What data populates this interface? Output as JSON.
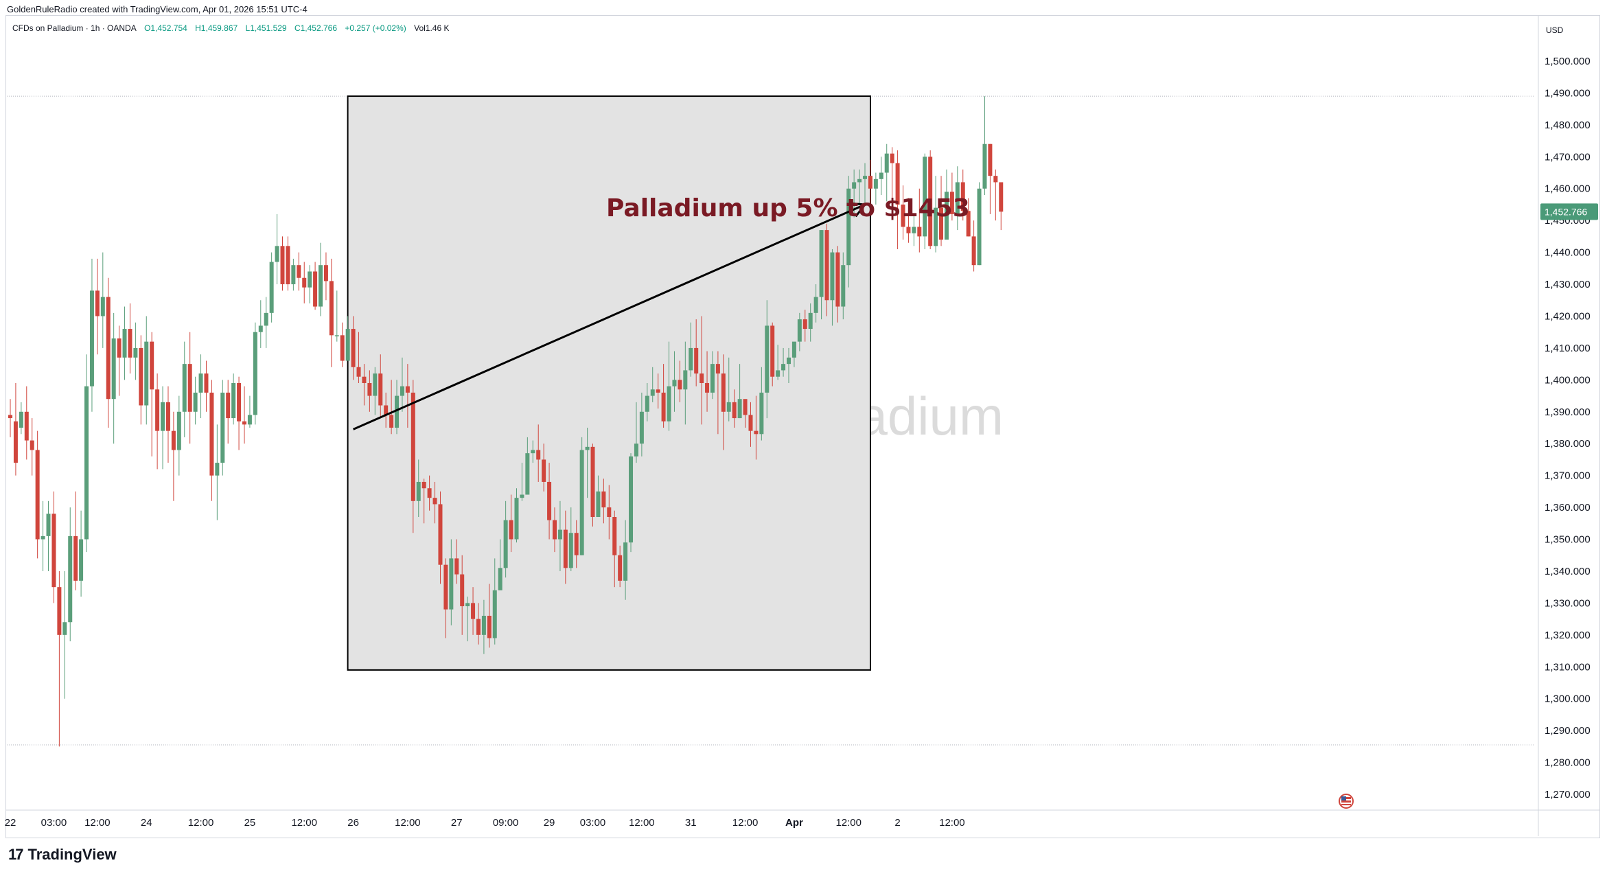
{
  "credit": "GoldenRuleRadio created with TradingView.com, Apr 01, 2026 15:51 UTC-4",
  "legend": {
    "symbol": "CFDs on Palladium · 1h · OANDA",
    "open": "O1,452.754",
    "high": "H1,459.867",
    "low": "L1,451.529",
    "close": "C1,452.766",
    "change": "+0.257 (+0.02%)",
    "volume": "Vol1.46 K"
  },
  "watermark": "CFDs on Palladium",
  "brand": {
    "logo": "17",
    "name": "TradingView"
  },
  "colors": {
    "up": "#5a9e7a",
    "down": "#d0453c",
    "price_label": "#4a9a78",
    "annotation": "#7a1a24",
    "box_fill": "#e3e3e3"
  },
  "chart_data": {
    "type": "candlestick",
    "currency": "USD",
    "y_range": [
      1263,
      1510
    ],
    "y_ticks": [
      "1,270.000",
      "1,280.000",
      "1,290.000",
      "1,300.000",
      "1,310.000",
      "1,320.000",
      "1,330.000",
      "1,340.000",
      "1,350.000",
      "1,360.000",
      "1,370.000",
      "1,380.000",
      "1,390.000",
      "1,400.000",
      "1,410.000",
      "1,420.000",
      "1,430.000",
      "1,440.000",
      "1,450.000",
      "1,460.000",
      "1,470.000",
      "1,480.000",
      "1,490.000",
      "1,500.000"
    ],
    "y_tick_values": [
      1270,
      1280,
      1290,
      1300,
      1310,
      1320,
      1330,
      1340,
      1350,
      1360,
      1370,
      1380,
      1390,
      1400,
      1410,
      1420,
      1430,
      1440,
      1450,
      1460,
      1470,
      1480,
      1490,
      1500
    ],
    "x_labels": [
      "22",
      "03:00",
      "12:00",
      "24",
      "12:00",
      "25",
      "12:00",
      "26",
      "12:00",
      "27",
      "09:00",
      "29",
      "03:00",
      "12:00",
      "31",
      "12:00",
      "Apr",
      "12:00",
      "2",
      "12:00"
    ],
    "x_label_index": [
      0,
      8,
      16,
      25,
      35,
      44,
      54,
      63,
      73,
      82,
      91,
      99,
      107,
      116,
      125,
      135,
      144,
      154,
      163,
      173
    ],
    "current_price": "1,452.766",
    "current_value": 1452.766,
    "dotted_levels": [
      1489,
      1285.5
    ],
    "candles": [
      [
        1389,
        1388,
        1394,
        1382
      ],
      [
        1387,
        1374,
        1399,
        1370
      ],
      [
        1385,
        1390,
        1393,
        1383
      ],
      [
        1390,
        1381,
        1398,
        1375
      ],
      [
        1381,
        1378,
        1388,
        1370
      ],
      [
        1378,
        1350,
        1384,
        1344
      ],
      [
        1350,
        1351,
        1362,
        1340
      ],
      [
        1351,
        1358,
        1362,
        1340
      ],
      [
        1358,
        1335,
        1365,
        1330
      ],
      [
        1335,
        1320,
        1340,
        1285
      ],
      [
        1320,
        1324,
        1340,
        1300
      ],
      [
        1324,
        1351,
        1360,
        1318
      ],
      [
        1351,
        1337,
        1365,
        1334
      ],
      [
        1337,
        1350,
        1359,
        1332
      ],
      [
        1350,
        1398,
        1408,
        1346
      ],
      [
        1398,
        1428,
        1438,
        1390
      ],
      [
        1428,
        1420,
        1438,
        1408
      ],
      [
        1420,
        1426,
        1440,
        1410
      ],
      [
        1426,
        1394,
        1432,
        1385
      ],
      [
        1394,
        1413,
        1421,
        1380
      ],
      [
        1413,
        1407,
        1417,
        1395
      ],
      [
        1407,
        1416,
        1423,
        1400
      ],
      [
        1416,
        1407,
        1424,
        1402
      ],
      [
        1407,
        1410,
        1418,
        1400
      ],
      [
        1410,
        1392,
        1414,
        1386
      ],
      [
        1392,
        1412,
        1420,
        1386
      ],
      [
        1412,
        1397,
        1415,
        1376
      ],
      [
        1397,
        1384,
        1402,
        1372
      ],
      [
        1384,
        1393,
        1398,
        1372
      ],
      [
        1393,
        1384,
        1398,
        1374
      ],
      [
        1384,
        1378,
        1390,
        1362
      ],
      [
        1378,
        1390,
        1395,
        1370
      ],
      [
        1390,
        1405,
        1412,
        1382
      ],
      [
        1405,
        1390,
        1415,
        1380
      ],
      [
        1390,
        1396,
        1401,
        1386
      ],
      [
        1396,
        1402,
        1408,
        1388
      ],
      [
        1402,
        1396,
        1406,
        1390
      ],
      [
        1396,
        1370,
        1400,
        1362
      ],
      [
        1370,
        1374,
        1386,
        1356
      ],
      [
        1374,
        1396,
        1400,
        1370
      ],
      [
        1396,
        1388,
        1400,
        1380
      ],
      [
        1388,
        1399,
        1402,
        1386
      ],
      [
        1399,
        1387,
        1401,
        1378
      ],
      [
        1387,
        1386,
        1398,
        1380
      ],
      [
        1386,
        1389,
        1395,
        1385
      ],
      [
        1389,
        1415,
        1418,
        1386
      ],
      [
        1415,
        1417,
        1425,
        1410
      ],
      [
        1417,
        1421,
        1426,
        1410
      ],
      [
        1421,
        1437,
        1440,
        1418
      ],
      [
        1437,
        1442,
        1452,
        1430
      ],
      [
        1442,
        1430,
        1445,
        1428
      ],
      [
        1442,
        1430,
        1445,
        1428
      ],
      [
        1430,
        1436,
        1438,
        1428
      ],
      [
        1436,
        1432,
        1440,
        1428
      ],
      [
        1432,
        1429,
        1437,
        1424
      ],
      [
        1429,
        1434,
        1436,
        1424
      ],
      [
        1434,
        1423,
        1437,
        1422
      ],
      [
        1423,
        1436,
        1443,
        1420
      ],
      [
        1436,
        1431,
        1440,
        1425
      ],
      [
        1431,
        1414,
        1438,
        1404
      ],
      [
        1414,
        1414,
        1428,
        1412
      ],
      [
        1414,
        1406,
        1418,
        1404
      ],
      [
        1406,
        1416,
        1420,
        1406
      ],
      [
        1416,
        1404,
        1420,
        1400
      ],
      [
        1404,
        1401,
        1415,
        1399
      ],
      [
        1401,
        1399,
        1405,
        1392
      ],
      [
        1399,
        1395,
        1403,
        1390
      ],
      [
        1395,
        1402,
        1404,
        1389
      ],
      [
        1402,
        1392,
        1408,
        1388
      ],
      [
        1392,
        1389,
        1396,
        1385
      ],
      [
        1389,
        1385,
        1400,
        1383
      ],
      [
        1385,
        1395,
        1400,
        1383
      ],
      [
        1395,
        1398,
        1407,
        1390
      ],
      [
        1398,
        1396,
        1405,
        1385
      ],
      [
        1396,
        1362,
        1400,
        1352
      ],
      [
        1362,
        1368,
        1375,
        1357
      ],
      [
        1368,
        1366,
        1369,
        1355
      ],
      [
        1366,
        1363,
        1370,
        1359
      ],
      [
        1363,
        1361,
        1368,
        1355
      ],
      [
        1361,
        1342,
        1365,
        1336
      ],
      [
        1342,
        1328,
        1344,
        1319
      ],
      [
        1328,
        1344,
        1350,
        1323
      ],
      [
        1344,
        1339,
        1350,
        1336
      ],
      [
        1339,
        1329,
        1345,
        1320
      ],
      [
        1329,
        1330,
        1332,
        1318
      ],
      [
        1330,
        1325,
        1335,
        1320
      ],
      [
        1325,
        1320,
        1330,
        1317
      ],
      [
        1320,
        1326,
        1331,
        1314
      ],
      [
        1326,
        1319,
        1336,
        1316
      ],
      [
        1319,
        1334,
        1344,
        1317
      ],
      [
        1334,
        1341,
        1350,
        1337
      ],
      [
        1341,
        1356,
        1362,
        1338
      ],
      [
        1356,
        1350,
        1364,
        1346
      ],
      [
        1350,
        1363,
        1366,
        1349
      ],
      [
        1363,
        1364,
        1374,
        1362
      ],
      [
        1364,
        1377,
        1382,
        1366
      ],
      [
        1377,
        1378,
        1381,
        1374
      ],
      [
        1378,
        1375,
        1386,
        1368
      ],
      [
        1375,
        1368,
        1380,
        1365
      ],
      [
        1368,
        1356,
        1374,
        1350
      ],
      [
        1356,
        1350,
        1360,
        1346
      ],
      [
        1350,
        1353,
        1362,
        1340
      ],
      [
        1353,
        1341,
        1359,
        1336
      ],
      [
        1341,
        1352,
        1360,
        1340
      ],
      [
        1352,
        1345,
        1356,
        1341
      ],
      [
        1345,
        1378,
        1382,
        1345
      ],
      [
        1378,
        1379,
        1385,
        1363
      ],
      [
        1379,
        1357,
        1380,
        1354
      ],
      [
        1357,
        1365,
        1370,
        1362
      ],
      [
        1365,
        1360,
        1369,
        1355
      ],
      [
        1360,
        1357,
        1367,
        1350
      ],
      [
        1357,
        1345,
        1359,
        1335
      ],
      [
        1345,
        1337,
        1348,
        1335
      ],
      [
        1337,
        1349,
        1356,
        1331
      ],
      [
        1349,
        1376,
        1377,
        1346
      ],
      [
        1376,
        1380,
        1393,
        1374
      ],
      [
        1380,
        1390,
        1396,
        1376
      ],
      [
        1390,
        1395,
        1399,
        1387
      ],
      [
        1395,
        1397,
        1404,
        1393
      ],
      [
        1397,
        1396,
        1402,
        1391
      ],
      [
        1396,
        1387,
        1405,
        1385
      ],
      [
        1387,
        1398,
        1412,
        1384
      ],
      [
        1398,
        1400,
        1409,
        1390
      ],
      [
        1400,
        1397,
        1406,
        1393
      ],
      [
        1397,
        1403,
        1412,
        1386
      ],
      [
        1403,
        1410,
        1418,
        1401
      ],
      [
        1410,
        1402,
        1419,
        1398
      ],
      [
        1402,
        1399,
        1420,
        1386
      ],
      [
        1399,
        1396,
        1409,
        1390
      ],
      [
        1396,
        1405,
        1409,
        1394
      ],
      [
        1405,
        1402,
        1409,
        1383
      ],
      [
        1402,
        1390,
        1408,
        1378
      ],
      [
        1390,
        1393,
        1407,
        1387
      ],
      [
        1393,
        1388,
        1397,
        1385
      ],
      [
        1388,
        1394,
        1405,
        1388
      ],
      [
        1394,
        1389,
        1393,
        1385
      ],
      [
        1389,
        1384,
        1393,
        1379
      ],
      [
        1384,
        1383,
        1395,
        1375
      ],
      [
        1383,
        1396,
        1404,
        1381
      ],
      [
        1396,
        1417,
        1425,
        1388
      ],
      [
        1417,
        1401,
        1418,
        1398
      ],
      [
        1401,
        1403,
        1411,
        1400
      ],
      [
        1403,
        1405,
        1410,
        1401
      ],
      [
        1405,
        1407,
        1410,
        1399
      ],
      [
        1407,
        1412,
        1411,
        1404
      ],
      [
        1412,
        1419,
        1421,
        1409
      ],
      [
        1419,
        1416,
        1422,
        1412
      ],
      [
        1416,
        1421,
        1424,
        1412
      ],
      [
        1421,
        1426,
        1430,
        1418
      ],
      [
        1426,
        1447,
        1447,
        1419
      ],
      [
        1447,
        1425,
        1449,
        1420
      ],
      [
        1425,
        1440,
        1441,
        1417
      ],
      [
        1440,
        1423,
        1442,
        1418
      ],
      [
        1423,
        1436,
        1440,
        1419
      ],
      [
        1436,
        1460,
        1464,
        1429
      ],
      [
        1460,
        1462,
        1466,
        1451
      ],
      [
        1462,
        1463,
        1466,
        1455
      ],
      [
        1463,
        1464,
        1468,
        1455
      ],
      [
        1464,
        1460,
        1469,
        1455
      ],
      [
        1460,
        1463,
        1465,
        1455
      ],
      [
        1463,
        1465,
        1470,
        1458
      ],
      [
        1465,
        1471,
        1474,
        1456
      ],
      [
        1471,
        1468,
        1473,
        1453
      ],
      [
        1468,
        1455,
        1472,
        1441
      ],
      [
        1455,
        1448,
        1461,
        1444
      ],
      [
        1448,
        1446,
        1457,
        1443
      ],
      [
        1446,
        1448,
        1452,
        1442
      ],
      [
        1448,
        1445,
        1460,
        1440
      ],
      [
        1445,
        1470,
        1471,
        1441
      ],
      [
        1470,
        1442,
        1472,
        1441
      ],
      [
        1442,
        1454,
        1464,
        1440
      ],
      [
        1454,
        1444,
        1464,
        1442
      ],
      [
        1444,
        1459,
        1466,
        1445
      ],
      [
        1459,
        1452,
        1465,
        1450
      ],
      [
        1452,
        1462,
        1467,
        1447
      ],
      [
        1462,
        1453,
        1466,
        1450
      ],
      [
        1453,
        1445,
        1457,
        1445
      ],
      [
        1445,
        1436,
        1450,
        1434
      ],
      [
        1436,
        1460,
        1462,
        1436
      ],
      [
        1460,
        1474,
        1489,
        1458
      ],
      [
        1474,
        1464,
        1474,
        1452
      ],
      [
        1464,
        1462,
        1466,
        1450
      ],
      [
        1462,
        1452.766,
        1460,
        1447
      ]
    ]
  },
  "annotation": {
    "title": "Palladium up 5% to $1453",
    "box": {
      "i0": 63,
      "i1": 157,
      "y_top": 1489,
      "y_bottom": 1309
    },
    "arrow": {
      "i0": 63,
      "y0": 1384.5,
      "i1": 157,
      "y1": 1455
    }
  }
}
